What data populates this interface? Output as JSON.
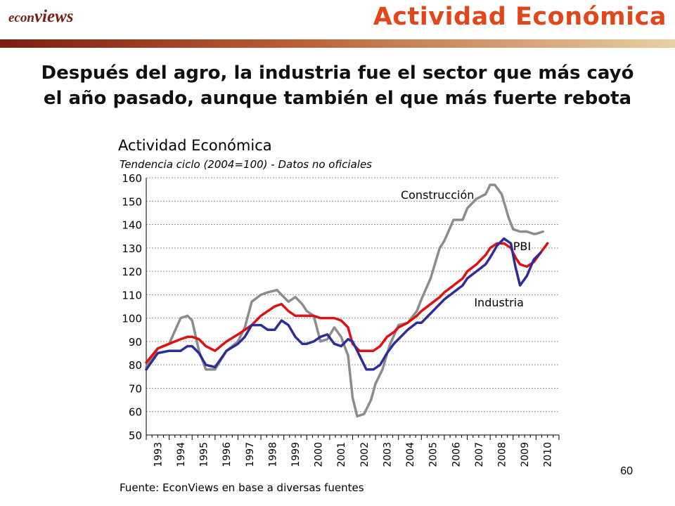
{
  "logo": {
    "econ": "econ",
    "views": "views"
  },
  "header": {
    "title": "Actividad Económica"
  },
  "colors": {
    "header_title": "#e2461b",
    "bar_dark": "#7a1d12",
    "bar_light": "#e7cfa3"
  },
  "subtitle": {
    "line1": "Después del agro, la industria fue el sector que más cayó",
    "line2": "el año pasado, aunque también el que más fuerte rebota"
  },
  "source": "Fuente: EconViews en base a diversas fuentes",
  "page_number": "60",
  "chart_data": {
    "type": "line",
    "title": "Actividad Económica",
    "subtitle": "Tendencia ciclo (2004=100) - Datos no oficiales",
    "xlabel": "",
    "ylabel": "",
    "xlim": [
      1993,
      2011
    ],
    "ylim": [
      50,
      160
    ],
    "yticks": [
      50,
      60,
      70,
      80,
      90,
      100,
      110,
      120,
      130,
      140,
      150,
      160
    ],
    "xtick_labels": [
      "1993",
      "1994",
      "1995",
      "1996",
      "1997",
      "1998",
      "1999",
      "2000",
      "2001",
      "2002",
      "2003",
      "2004",
      "2005",
      "2006",
      "2007",
      "2008",
      "2009",
      "2010"
    ],
    "grid": true,
    "series": [
      {
        "name": "Construcción",
        "color": "#8c8c8c",
        "x": [
          1993.0,
          1993.5,
          1994.0,
          1994.5,
          1994.8,
          1995.0,
          1995.3,
          1995.6,
          1996.0,
          1996.5,
          1997.0,
          1997.3,
          1997.6,
          1998.0,
          1998.3,
          1998.7,
          1998.9,
          1999.2,
          1999.5,
          1999.8,
          2000.0,
          2000.3,
          2000.6,
          2000.9,
          2001.2,
          2001.5,
          2001.8,
          2002.0,
          2002.2,
          2002.5,
          2002.8,
          2003.0,
          2003.3,
          2003.6,
          2004.0,
          2004.4,
          2004.8,
          2005.0,
          2005.4,
          2005.8,
          2006.0,
          2006.4,
          2006.8,
          2007.0,
          2007.4,
          2007.8,
          2008.0,
          2008.2,
          2008.5,
          2008.8,
          2009.0,
          2009.3,
          2009.6,
          2009.9,
          2010.0,
          2010.3
        ],
        "values": [
          79,
          87,
          89,
          100,
          101,
          99,
          86,
          78,
          78,
          86,
          90,
          96,
          107,
          110,
          111,
          112,
          110,
          107,
          109,
          106,
          103,
          101,
          90,
          91,
          96,
          92,
          84,
          66,
          58,
          59,
          65,
          72,
          78,
          88,
          97,
          98,
          103,
          108,
          117,
          130,
          133,
          142,
          142,
          147,
          151,
          153,
          157,
          157,
          153,
          143,
          138,
          137,
          137,
          136,
          136,
          137
        ]
      },
      {
        "name": "PBI",
        "color": "#e01010",
        "x": [
          1993.0,
          1993.5,
          1994.0,
          1994.5,
          1994.8,
          1995.0,
          1995.3,
          1995.6,
          1996.0,
          1996.5,
          1997.0,
          1997.3,
          1997.6,
          1998.0,
          1998.3,
          1998.6,
          1998.9,
          1999.2,
          1999.5,
          1999.8,
          2000.0,
          2000.3,
          2000.6,
          2000.9,
          2001.2,
          2001.5,
          2001.8,
          2002.0,
          2002.3,
          2002.6,
          2002.9,
          2003.2,
          2003.5,
          2003.8,
          2004.0,
          2004.4,
          2004.8,
          2005.0,
          2005.4,
          2005.8,
          2006.0,
          2006.4,
          2006.8,
          2007.0,
          2007.4,
          2007.8,
          2008.0,
          2008.3,
          2008.6,
          2008.9,
          2009.1,
          2009.3,
          2009.6,
          2009.9,
          2010.2,
          2010.5
        ],
        "values": [
          81,
          87,
          89,
          91,
          92,
          92,
          91,
          88,
          86,
          90,
          93,
          95,
          97,
          101,
          103,
          105,
          106,
          103,
          101,
          101,
          101,
          101,
          100,
          100,
          100,
          99,
          96,
          89,
          86,
          86,
          86,
          88,
          92,
          94,
          96,
          98,
          101,
          103,
          106,
          109,
          111,
          114,
          117,
          120,
          123,
          127,
          130,
          132,
          132,
          130,
          126,
          123,
          122,
          124,
          128,
          132
        ]
      },
      {
        "name": "Industria",
        "color": "#2d2d9a",
        "x": [
          1993.0,
          1993.5,
          1994.0,
          1994.5,
          1994.8,
          1995.0,
          1995.3,
          1995.6,
          1996.0,
          1996.5,
          1997.0,
          1997.3,
          1997.6,
          1998.0,
          1998.3,
          1998.6,
          1998.9,
          1999.2,
          1999.5,
          1999.8,
          2000.0,
          2000.3,
          2000.6,
          2000.9,
          2001.2,
          2001.5,
          2001.8,
          2002.0,
          2002.3,
          2002.6,
          2002.9,
          2003.2,
          2003.5,
          2003.8,
          2004.0,
          2004.4,
          2004.8,
          2005.0,
          2005.4,
          2005.8,
          2006.0,
          2006.4,
          2006.8,
          2007.0,
          2007.4,
          2007.8,
          2008.0,
          2008.3,
          2008.6,
          2008.9,
          2009.1,
          2009.3,
          2009.6,
          2009.9,
          2010.2
        ],
        "values": [
          78,
          85,
          86,
          86,
          88,
          88,
          85,
          80,
          79,
          86,
          89,
          92,
          97,
          97,
          95,
          95,
          99,
          97,
          92,
          89,
          89,
          90,
          92,
          93,
          89,
          88,
          91,
          90,
          84,
          78,
          78,
          80,
          85,
          89,
          91,
          95,
          98,
          98,
          102,
          106,
          108,
          111,
          114,
          117,
          120,
          123,
          126,
          131,
          134,
          132,
          122,
          114,
          118,
          125,
          128
        ]
      }
    ],
    "annotations": [
      {
        "text": "Construcción",
        "x": 2004.1,
        "y": 151
      },
      {
        "text": "PBI",
        "x": 2009.0,
        "y": 129
      },
      {
        "text": "Industria",
        "x": 2007.3,
        "y": 105
      }
    ]
  }
}
